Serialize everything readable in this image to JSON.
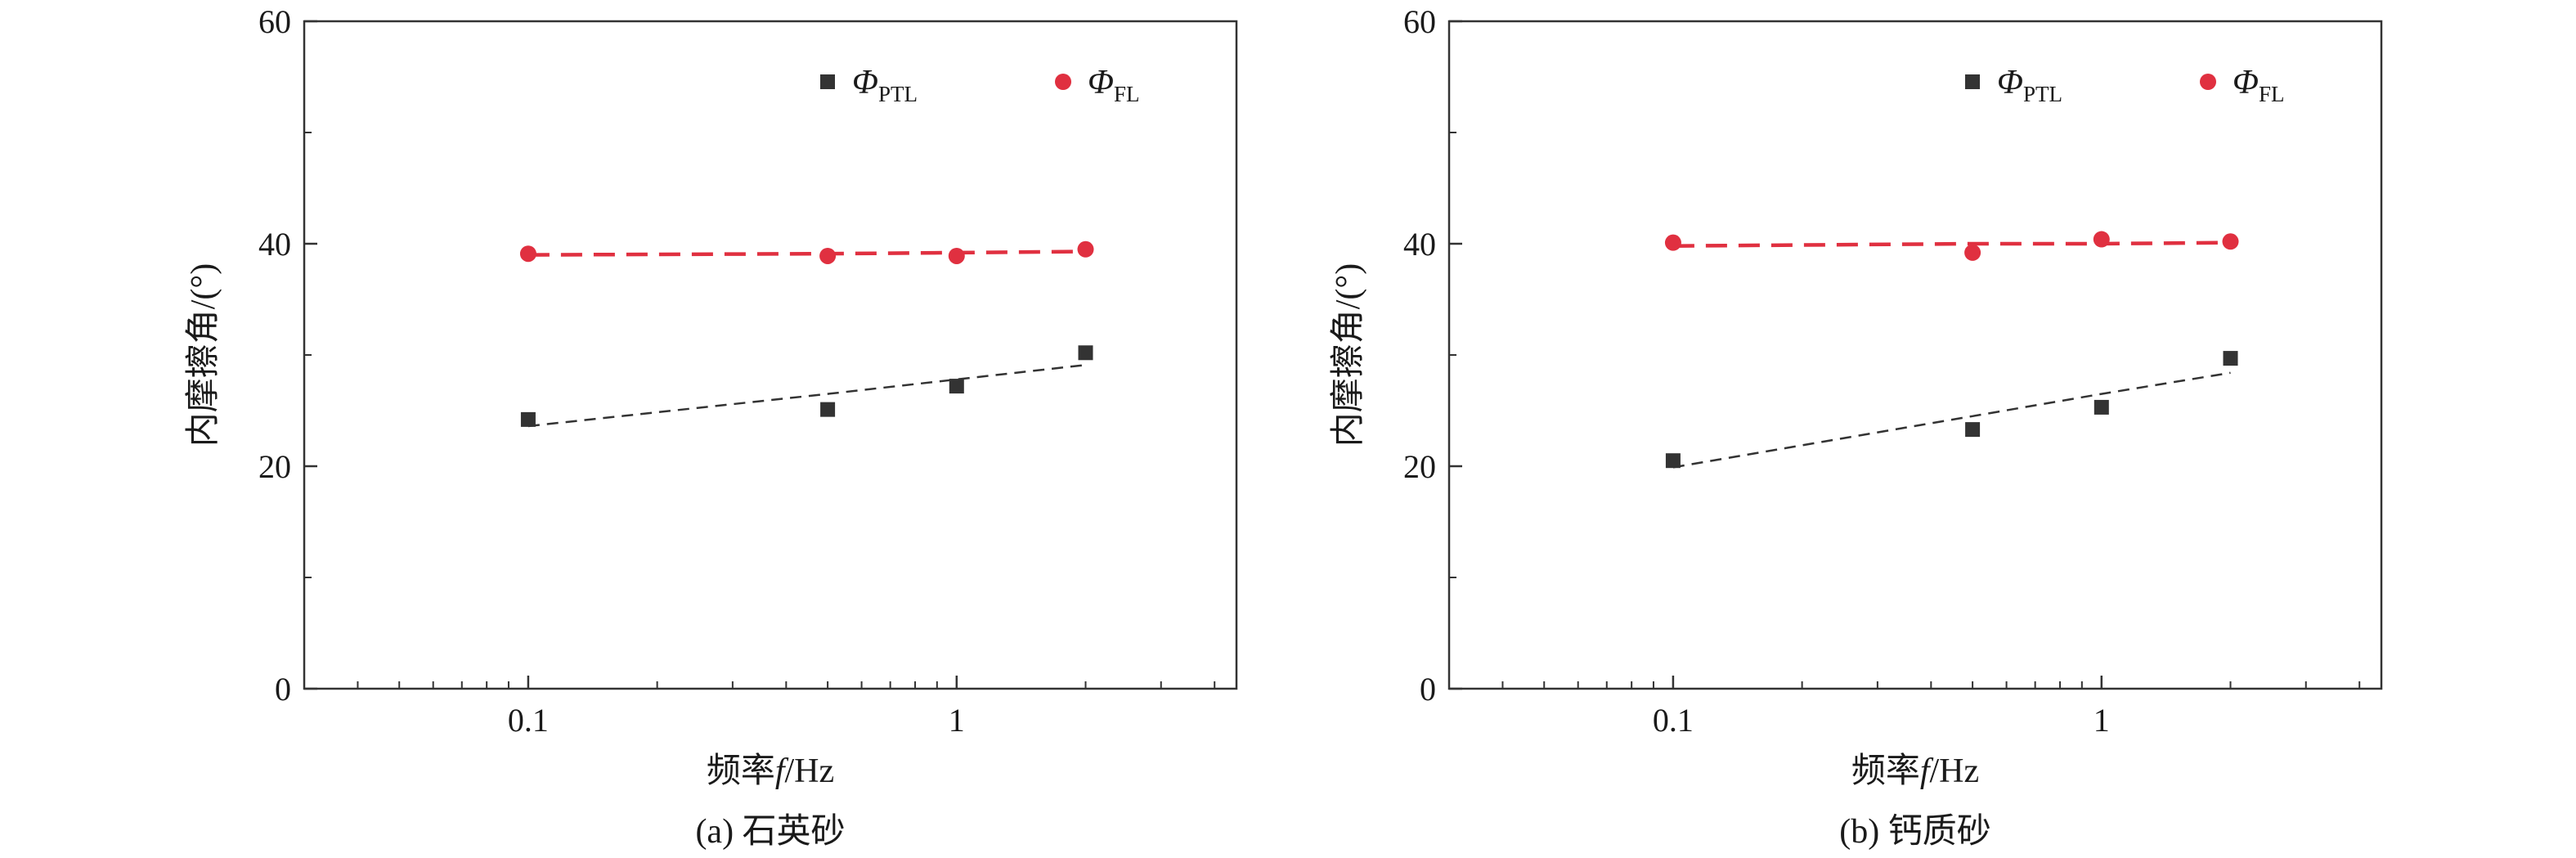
{
  "chart_data": [
    {
      "type": "scatter",
      "caption": "(a) 石英砂",
      "xlabel": "频率",
      "xlabel_var": "f",
      "xlabel_unit": "/Hz",
      "ylabel": "内摩擦角/(°)",
      "xscale": "log",
      "xlim": [
        0.03,
        4.5
      ],
      "ylim": [
        0,
        60
      ],
      "xticks": [
        0.1,
        1
      ],
      "xtick_labels": [
        "0.1",
        "1"
      ],
      "yticks": [
        0,
        20,
        40,
        60
      ],
      "ytick_labels": [
        "0",
        "20",
        "40",
        "60"
      ],
      "grid": false,
      "legend_position": "top",
      "series": [
        {
          "name": "Φ",
          "name_sub": "PTL",
          "marker": "square",
          "color": "#333333",
          "x": [
            0.1,
            0.5,
            1,
            2
          ],
          "y": [
            24.2,
            25.1,
            27.2,
            30.2
          ],
          "fit_y": [
            23.6,
            26.5,
            27.8,
            29.1
          ]
        },
        {
          "name": "Φ",
          "name_sub": "FL",
          "marker": "circle",
          "color": "#e03040",
          "x": [
            0.1,
            0.5,
            1,
            2
          ],
          "y": [
            39.1,
            38.9,
            38.9,
            39.5
          ],
          "fit_y": [
            39.0,
            39.1,
            39.2,
            39.3
          ]
        }
      ]
    },
    {
      "type": "scatter",
      "caption": "(b) 钙质砂",
      "xlabel": "频率",
      "xlabel_var": "f",
      "xlabel_unit": "/Hz",
      "ylabel": "内摩擦角/(°)",
      "xscale": "log",
      "xlim": [
        0.03,
        4.5
      ],
      "ylim": [
        0,
        60
      ],
      "xticks": [
        0.1,
        1
      ],
      "xtick_labels": [
        "0.1",
        "1"
      ],
      "yticks": [
        0,
        20,
        40,
        60
      ],
      "ytick_labels": [
        "0",
        "20",
        "40",
        "60"
      ],
      "grid": false,
      "legend_position": "top",
      "series": [
        {
          "name": "Φ",
          "name_sub": "PTL",
          "marker": "square",
          "color": "#333333",
          "x": [
            0.1,
            0.5,
            1,
            2
          ],
          "y": [
            20.5,
            23.3,
            25.3,
            29.7
          ],
          "fit_y": [
            19.9,
            24.5,
            26.5,
            28.4
          ]
        },
        {
          "name": "Φ",
          "name_sub": "FL",
          "marker": "circle",
          "color": "#e03040",
          "x": [
            0.1,
            0.5,
            1,
            2
          ],
          "y": [
            40.1,
            39.2,
            40.4,
            40.2
          ],
          "fit_y": [
            39.8,
            40.0,
            40.0,
            40.1
          ]
        }
      ]
    }
  ]
}
